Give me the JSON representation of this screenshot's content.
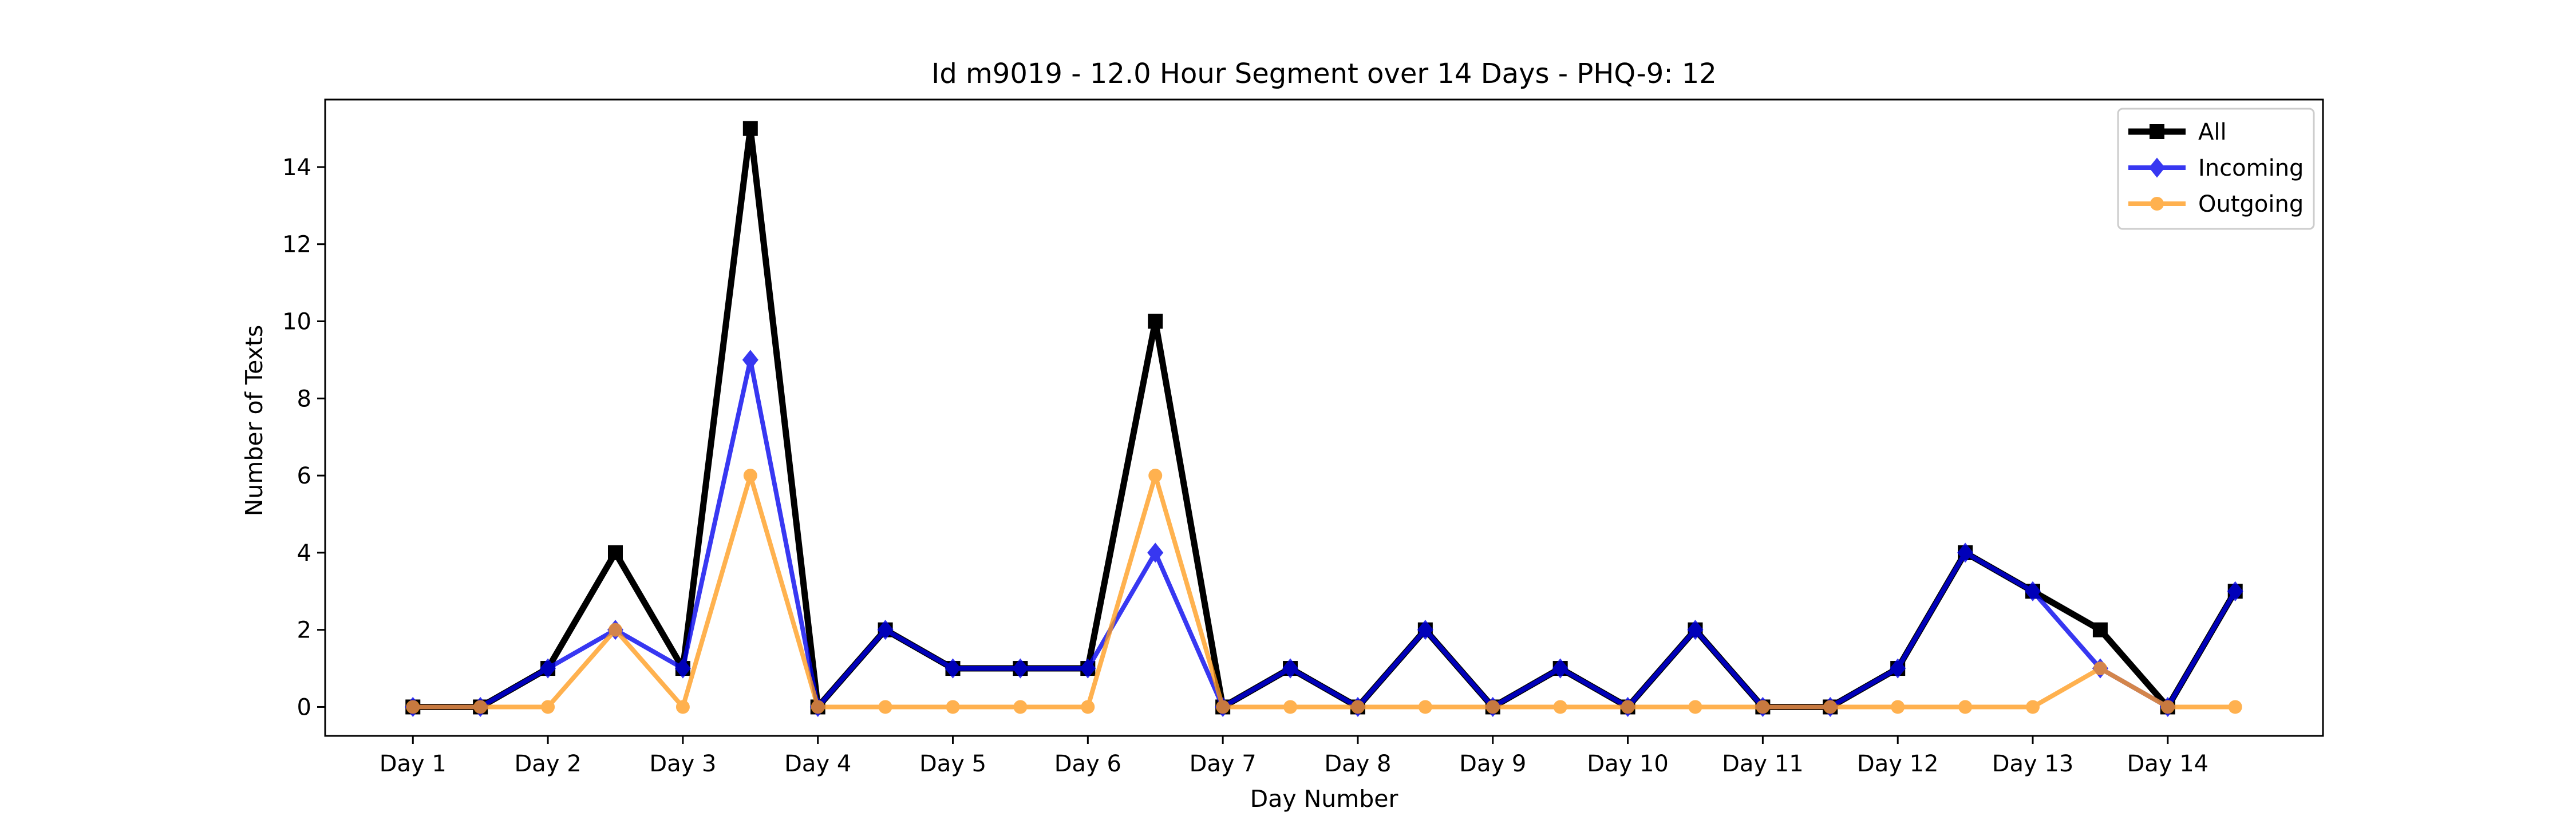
{
  "chart_data": {
    "type": "line",
    "title": "Id m9019 - 12.0 Hour Segment over 14 Days - PHQ-9: 12",
    "xlabel": "Day Number",
    "ylabel": "Number of Texts",
    "x": [
      1,
      1.5,
      2,
      2.5,
      3,
      3.5,
      4,
      4.5,
      5,
      5.5,
      6,
      6.5,
      7,
      7.5,
      8,
      8.5,
      9,
      9.5,
      10,
      10.5,
      11,
      11.5,
      12,
      12.5,
      13,
      13.5,
      14,
      14.5
    ],
    "xtick_values": [
      1,
      2,
      3,
      4,
      5,
      6,
      7,
      8,
      9,
      10,
      11,
      12,
      13,
      14
    ],
    "xtick_labels": [
      "Day 1",
      "Day 2",
      "Day 3",
      "Day 4",
      "Day 5",
      "Day 6",
      "Day 7",
      "Day 8",
      "Day 9",
      "Day 10",
      "Day 11",
      "Day 12",
      "Day 13",
      "Day 14"
    ],
    "xlim": [
      0.35,
      15.15
    ],
    "ylim": [
      -0.75,
      15.75
    ],
    "yticks": [
      0,
      2,
      4,
      6,
      8,
      10,
      12,
      14
    ],
    "grid": false,
    "legend_position": "top-right",
    "series": [
      {
        "name": "All",
        "color": "#000000",
        "marker": "square",
        "values": [
          0,
          0,
          1,
          4,
          1,
          15,
          0,
          2,
          1,
          1,
          1,
          10,
          0,
          1,
          0,
          2,
          0,
          1,
          0,
          2,
          0,
          0,
          1,
          4,
          3,
          2,
          0,
          3
        ]
      },
      {
        "name": "Incoming",
        "color": "#0000ee",
        "marker": "diamond",
        "values": [
          0,
          0,
          1,
          2,
          1,
          9,
          0,
          2,
          1,
          1,
          1,
          4,
          0,
          1,
          0,
          2,
          0,
          1,
          0,
          2,
          0,
          0,
          1,
          4,
          3,
          1,
          0,
          3
        ]
      },
      {
        "name": "Outgoing",
        "color": "#ff9c1e",
        "marker": "circle",
        "values": [
          0,
          0,
          0,
          2,
          0,
          6,
          0,
          0,
          0,
          0,
          0,
          6,
          0,
          0,
          0,
          0,
          0,
          0,
          0,
          0,
          0,
          0,
          0,
          0,
          0,
          1,
          0,
          0
        ]
      }
    ]
  }
}
